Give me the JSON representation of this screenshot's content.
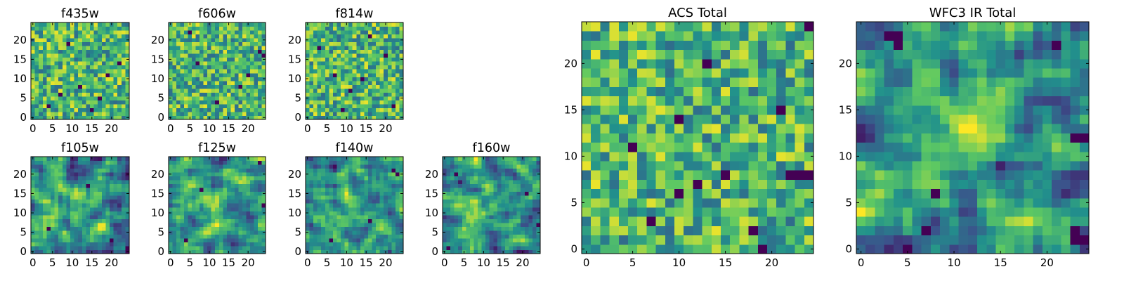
{
  "figure": {
    "colormap": "viridis",
    "colormap_stops": [
      "#440154",
      "#3b528b",
      "#21918c",
      "#5ec962",
      "#fde725"
    ]
  },
  "chart_data": [
    {
      "type": "heatmap",
      "title": "f435w",
      "grid_size": 25,
      "xticks": [
        "0",
        "5",
        "10",
        "15",
        "20"
      ],
      "yticks": [
        "0",
        "5",
        "10",
        "15",
        "20"
      ],
      "xlim": [
        0,
        25
      ],
      "ylim": [
        0,
        25
      ],
      "value_description": "normalized pixel intensity 0-1, noise field (values estimated)",
      "seed": 11,
      "blobs": [],
      "dark_pixels": [
        [
          4,
          3
        ],
        [
          7,
          6
        ],
        [
          12,
          8
        ],
        [
          17,
          5
        ],
        [
          22,
          14
        ],
        [
          9,
          19
        ],
        [
          15,
          2
        ],
        [
          19,
          11
        ]
      ]
    },
    {
      "type": "heatmap",
      "title": "f606w",
      "grid_size": 25,
      "xticks": [
        "0",
        "5",
        "10",
        "15",
        "20"
      ],
      "yticks": [
        "0",
        "5",
        "10",
        "15",
        "20"
      ],
      "xlim": [
        0,
        25
      ],
      "ylim": [
        0,
        25
      ],
      "value_description": "normalized pixel intensity 0-1, noise field (values estimated)",
      "seed": 23,
      "blobs": [],
      "dark_pixels": [
        [
          7,
          14
        ],
        [
          23,
          17
        ],
        [
          24,
          16
        ],
        [
          18,
          8
        ],
        [
          5,
          22
        ],
        [
          12,
          4
        ],
        [
          20,
          11
        ]
      ]
    },
    {
      "type": "heatmap",
      "title": "f814w",
      "grid_size": 25,
      "xticks": [
        "0",
        "5",
        "10",
        "15",
        "20"
      ],
      "yticks": [
        "0",
        "5",
        "10",
        "15",
        "20"
      ],
      "xlim": [
        0,
        25
      ],
      "ylim": [
        0,
        25
      ],
      "value_description": "normalized pixel intensity 0-1, noise field (values estimated)",
      "seed": 37,
      "blobs": [],
      "dark_pixels": [
        [
          3,
          18
        ],
        [
          7,
          11
        ],
        [
          11,
          7
        ],
        [
          14,
          10
        ],
        [
          20,
          16
        ],
        [
          22,
          3
        ],
        [
          9,
          2
        ],
        [
          16,
          21
        ]
      ]
    },
    {
      "type": "heatmap",
      "title": "f105w",
      "grid_size": 25,
      "xticks": [
        "0",
        "5",
        "10",
        "15",
        "20"
      ],
      "yticks": [
        "0",
        "5",
        "10",
        "15",
        "20"
      ],
      "xlim": [
        0,
        25
      ],
      "ylim": [
        0,
        25
      ],
      "value_description": "normalized pixel intensity 0-1, smooth correlated field (values estimated)",
      "seed": 53,
      "blobs": [
        [
          12,
          12,
          3,
          0.12
        ]
      ],
      "dark_pixels": [
        [
          14,
          17
        ],
        [
          4,
          6
        ],
        [
          20,
          3
        ],
        [
          24,
          1
        ]
      ]
    },
    {
      "type": "heatmap",
      "title": "f125w",
      "grid_size": 25,
      "xticks": [
        "0",
        "5",
        "10",
        "15",
        "20"
      ],
      "yticks": [
        "0",
        "5",
        "10",
        "15",
        "20"
      ],
      "xlim": [
        0,
        25
      ],
      "ylim": [
        0,
        25
      ],
      "value_description": "normalized pixel intensity 0-1, smooth correlated field (values estimated)",
      "seed": 71,
      "blobs": [
        [
          12,
          12,
          3,
          0.15
        ]
      ],
      "dark_pixels": [
        [
          23,
          23
        ],
        [
          8,
          16
        ],
        [
          24,
          12
        ],
        [
          4,
          3
        ]
      ]
    },
    {
      "type": "heatmap",
      "title": "f140w",
      "grid_size": 25,
      "xticks": [
        "0",
        "5",
        "10",
        "15",
        "20"
      ],
      "yticks": [
        "0",
        "5",
        "10",
        "15",
        "20"
      ],
      "xlim": [
        0,
        25
      ],
      "ylim": [
        0,
        25
      ],
      "value_description": "normalized pixel intensity 0-1, smooth correlated field (values estimated)",
      "seed": 89,
      "blobs": [
        [
          12,
          12,
          3,
          0.15
        ]
      ],
      "dark_pixels": [
        [
          22,
          21
        ],
        [
          23,
          20
        ],
        [
          16,
          8
        ],
        [
          6,
          3
        ]
      ]
    },
    {
      "type": "heatmap",
      "title": "f160w",
      "grid_size": 25,
      "xticks": [
        "0",
        "5",
        "10",
        "15",
        "20"
      ],
      "yticks": [
        "0",
        "5",
        "10",
        "15",
        "20"
      ],
      "xlim": [
        0,
        25
      ],
      "ylim": [
        0,
        25
      ],
      "value_description": "normalized pixel intensity 0-1, smooth correlated field (values estimated)",
      "seed": 101,
      "blobs": [
        [
          12,
          12,
          3,
          0.2
        ]
      ],
      "dark_pixels": [
        [
          1,
          1
        ],
        [
          3,
          20
        ],
        [
          21,
          15
        ],
        [
          24,
          7
        ]
      ]
    },
    {
      "type": "heatmap",
      "title": "ACS Total",
      "grid_size": 25,
      "xticks": [
        "0",
        "5",
        "10",
        "15",
        "20"
      ],
      "yticks": [
        "0",
        "5",
        "10",
        "15",
        "20"
      ],
      "xlim": [
        0,
        25
      ],
      "ylim": [
        0,
        25
      ],
      "value_description": "normalized pixel intensity 0-1, noise field (values estimated)",
      "seed": 131,
      "blobs": [],
      "dark_pixels": [
        [
          22,
          8
        ],
        [
          23,
          8
        ],
        [
          24,
          8
        ],
        [
          15,
          8
        ],
        [
          12,
          7
        ],
        [
          10,
          6
        ],
        [
          7,
          3
        ],
        [
          18,
          2
        ],
        [
          19,
          0
        ],
        [
          5,
          11
        ],
        [
          10,
          14
        ],
        [
          21,
          15
        ],
        [
          13,
          20
        ],
        [
          24,
          24
        ]
      ]
    },
    {
      "type": "heatmap",
      "title": "WFC3 IR Total",
      "grid_size": 25,
      "xticks": [
        "0",
        "5",
        "10",
        "15",
        "20"
      ],
      "yticks": [
        "0",
        "5",
        "10",
        "15",
        "20"
      ],
      "xlim": [
        0,
        25
      ],
      "ylim": [
        0,
        25
      ],
      "value_description": "normalized pixel intensity 0-1, smooth field with central bright source near (12,13) (values estimated)",
      "seed": 157,
      "blobs": [
        [
          12,
          13,
          2.5,
          0.45
        ]
      ],
      "dark_pixels": [
        [
          23,
          12
        ],
        [
          24,
          12
        ],
        [
          8,
          6
        ],
        [
          7,
          2
        ],
        [
          23,
          1
        ],
        [
          24,
          1
        ],
        [
          23,
          2
        ],
        [
          3,
          23
        ],
        [
          4,
          23
        ],
        [
          4,
          22
        ],
        [
          21,
          22
        ]
      ]
    }
  ]
}
